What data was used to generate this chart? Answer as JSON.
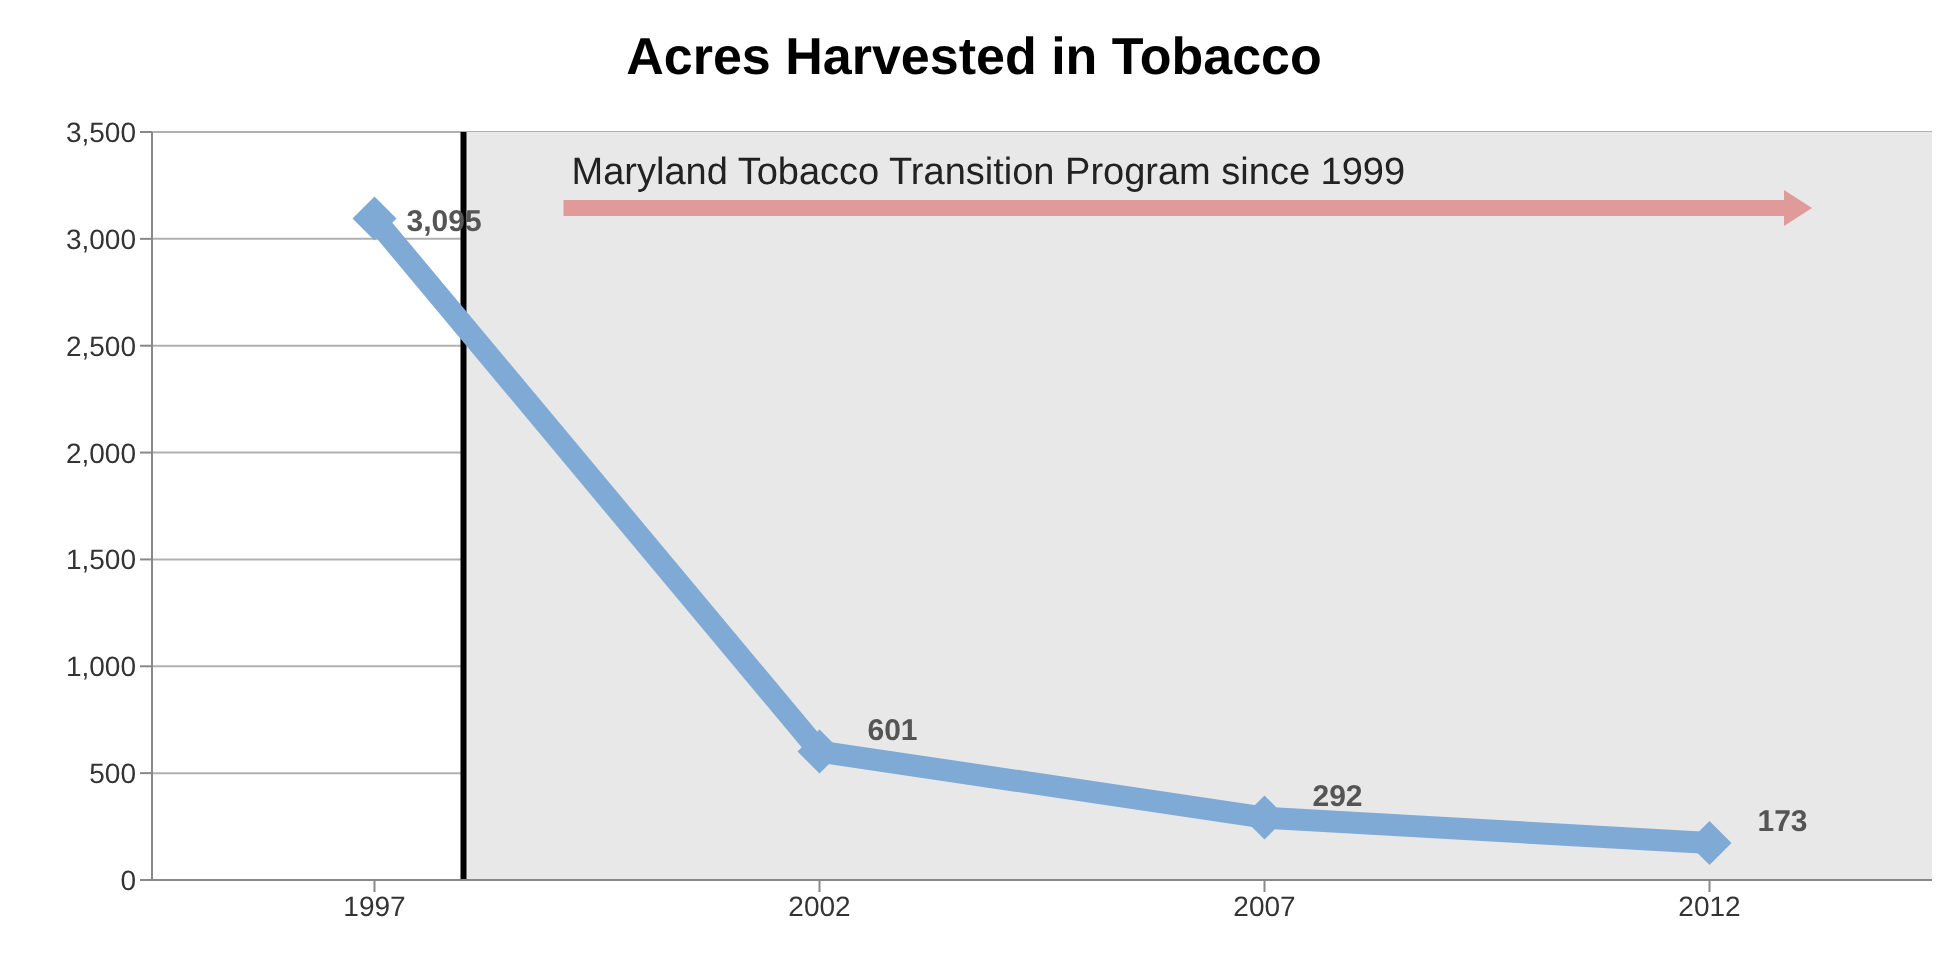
{
  "chart_data": {
    "type": "line",
    "title": "Acres Harvested in Tobacco",
    "x": [
      1997,
      2002,
      2007,
      2012
    ],
    "xlim": [
      1994.5,
      2014.5
    ],
    "xticks": [
      1997,
      2002,
      2007,
      2012
    ],
    "series": [
      {
        "color": "#7eaad5",
        "values": [
          3095,
          601,
          292,
          173
        ],
        "value_labels": [
          "3,095",
          "601",
          "292",
          "173"
        ]
      }
    ],
    "ylim": [
      0,
      3500
    ],
    "yticks": [
      0,
      500,
      {
        "value": 1000,
        "label": "1,000"
      },
      {
        "value": 1500,
        "label": "1,500"
      },
      {
        "value": 2000,
        "label": "2,000"
      },
      {
        "value": 2500,
        "label": "2,500"
      },
      {
        "value": 3000,
        "label": "3,000"
      },
      {
        "value": 3500,
        "label": "3,500"
      }
    ],
    "grid": "y",
    "marker": "diamond",
    "line_style": "solid",
    "ref_lines": [
      {
        "axis": "x",
        "value": 1998,
        "color": "#000000"
      }
    ],
    "bands": [
      {
        "axis": "x",
        "from": 1998,
        "to": 2014.5,
        "color": "#e8e8e8",
        "label": "Maryland Tobacco Transition Program since 1999"
      }
    ]
  }
}
